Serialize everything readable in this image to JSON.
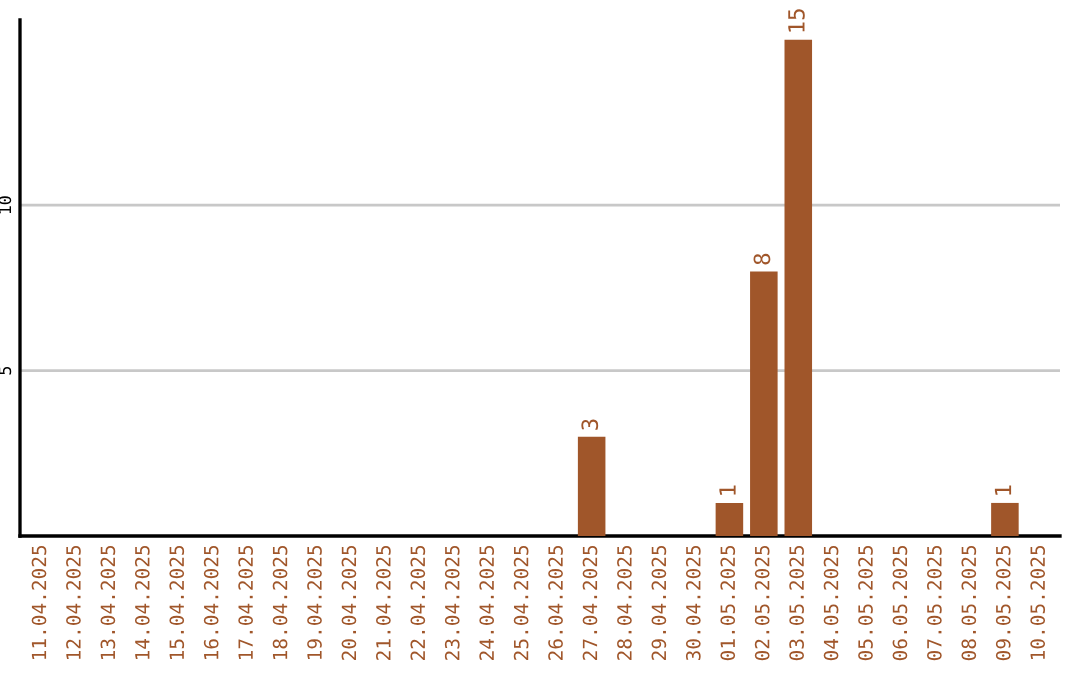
{
  "chart_data": {
    "type": "bar",
    "categories": [
      "11.04.2025",
      "12.04.2025",
      "13.04.2025",
      "14.04.2025",
      "15.04.2025",
      "16.04.2025",
      "17.04.2025",
      "18.04.2025",
      "19.04.2025",
      "20.04.2025",
      "21.04.2025",
      "22.04.2025",
      "23.04.2025",
      "24.04.2025",
      "25.04.2025",
      "26.04.2025",
      "27.04.2025",
      "28.04.2025",
      "29.04.2025",
      "30.04.2025",
      "01.05.2025",
      "02.05.2025",
      "03.05.2025",
      "04.05.2025",
      "05.05.2025",
      "06.05.2025",
      "07.05.2025",
      "08.05.2025",
      "09.05.2025",
      "10.05.2025"
    ],
    "values": [
      0,
      0,
      0,
      0,
      0,
      0,
      0,
      0,
      0,
      0,
      0,
      0,
      0,
      0,
      0,
      0,
      3,
      0,
      0,
      0,
      1,
      8,
      15,
      0,
      0,
      0,
      0,
      0,
      1,
      0
    ],
    "value_labels": [
      null,
      null,
      null,
      null,
      null,
      null,
      null,
      null,
      null,
      null,
      null,
      null,
      null,
      null,
      null,
      null,
      "3",
      null,
      null,
      null,
      "1",
      "8",
      "15",
      null,
      null,
      null,
      null,
      null,
      "1",
      null
    ],
    "color": "#a0562a",
    "ylim": [
      0,
      15.6
    ],
    "yticks": [
      5,
      10
    ],
    "grid": "y"
  }
}
